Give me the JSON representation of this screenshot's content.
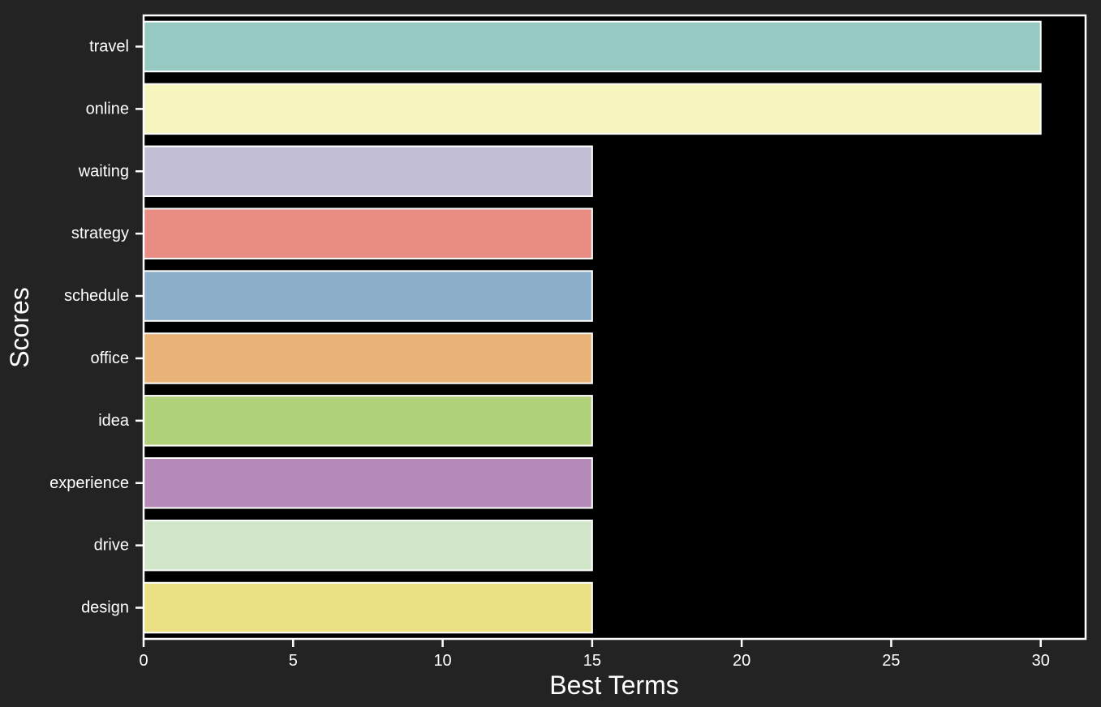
{
  "chart_data": {
    "type": "bar",
    "orientation": "horizontal",
    "categories": [
      "travel",
      "online",
      "waiting",
      "strategy",
      "schedule",
      "office",
      "idea",
      "experience",
      "drive",
      "design"
    ],
    "values": [
      30,
      30,
      15,
      15,
      15,
      15,
      15,
      15,
      15,
      15
    ],
    "bar_colors": [
      "#95c9c1",
      "#f5f5bd",
      "#c2bed6",
      "#e98c84",
      "#8caec9",
      "#e9b277",
      "#b0d07a",
      "#b68ab8",
      "#d1e6c9",
      "#ebe083"
    ],
    "xlabel": "Best Terms",
    "ylabel": "Scores",
    "xlim": [
      0,
      31.5
    ],
    "x_ticks": [
      0,
      5,
      10,
      15,
      20,
      25,
      30
    ],
    "grid": false,
    "legend": "none",
    "colors": {
      "figure_background": "#232323",
      "plot_background": "#000000",
      "text": "#ffffff",
      "axis_line": "#ffffff",
      "bar_edge": "#ffffff"
    }
  }
}
